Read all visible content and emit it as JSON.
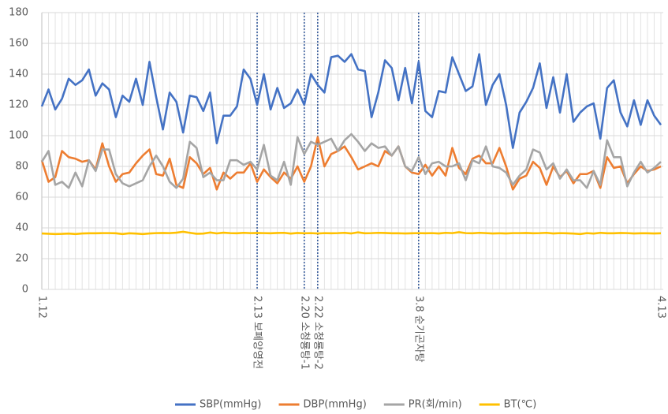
{
  "chart_data": {
    "type": "line",
    "categories": [
      "1.12",
      null,
      null,
      null,
      null,
      null,
      null,
      null,
      null,
      null,
      null,
      null,
      null,
      null,
      null,
      null,
      null,
      null,
      null,
      null,
      null,
      null,
      null,
      null,
      null,
      null,
      null,
      null,
      null,
      null,
      null,
      null,
      "2.13 보폐양영전",
      null,
      null,
      null,
      null,
      null,
      null,
      "2.20 소청룡탕-1",
      null,
      "2.22 소청룡탕-2",
      null,
      null,
      null,
      null,
      null,
      null,
      null,
      null,
      null,
      null,
      null,
      null,
      null,
      null,
      "3.8 순기곤자탕",
      null,
      null,
      null,
      null,
      null,
      null,
      null,
      null,
      null,
      null,
      null,
      null,
      null,
      null,
      null,
      null,
      null,
      null,
      null,
      null,
      null,
      null,
      null,
      null,
      null,
      null,
      null,
      null,
      null,
      null,
      null,
      null,
      null,
      null,
      null,
      "4.13"
    ],
    "series": [
      {
        "name": "SBP(mmHg)",
        "color": "#4472c4",
        "values": [
          119,
          130,
          117,
          124,
          137,
          133,
          136,
          143,
          126,
          134,
          130,
          112,
          126,
          122,
          137,
          120,
          148,
          125,
          104,
          128,
          122,
          102,
          126,
          125,
          116,
          128,
          95,
          113,
          113,
          119,
          143,
          137,
          120,
          140,
          117,
          131,
          118,
          121,
          130,
          120,
          140,
          133,
          128,
          151,
          152,
          148,
          153,
          143,
          142,
          112,
          128,
          149,
          144,
          123,
          144,
          121,
          148,
          116,
          112,
          129,
          128,
          151,
          140,
          129,
          132,
          153,
          120,
          133,
          140,
          120,
          92,
          115,
          122,
          131,
          147,
          118,
          138,
          115,
          140,
          109,
          115,
          119,
          121,
          98,
          131,
          136,
          115,
          106,
          123,
          107,
          123,
          113,
          107
        ]
      },
      {
        "name": "DBP(mmHg)",
        "color": "#ed7d31",
        "values": [
          84,
          70,
          73,
          90,
          86,
          85,
          83,
          84,
          78,
          95,
          80,
          70,
          75,
          76,
          82,
          87,
          91,
          75,
          74,
          85,
          68,
          66,
          86,
          82,
          75,
          79,
          65,
          76,
          72,
          76,
          76,
          82,
          70,
          78,
          73,
          69,
          76,
          72,
          80,
          70,
          80,
          99,
          80,
          88,
          90,
          93,
          86,
          78,
          80,
          82,
          80,
          90,
          87,
          93,
          80,
          76,
          75,
          81,
          74,
          80,
          74,
          92,
          79,
          75,
          85,
          87,
          82,
          82,
          92,
          80,
          65,
          72,
          74,
          83,
          79,
          68,
          80,
          73,
          77,
          69,
          75,
          75,
          77,
          66,
          86,
          79,
          80,
          69,
          75,
          80,
          77,
          78,
          80
        ]
      },
      {
        "name": "PR(회/min)",
        "color": "#a5a5a5",
        "values": [
          83,
          90,
          68,
          70,
          66,
          76,
          67,
          84,
          77,
          91,
          91,
          75,
          69,
          67,
          69,
          71,
          80,
          87,
          80,
          70,
          66,
          72,
          96,
          92,
          73,
          76,
          71,
          71,
          84,
          84,
          81,
          83,
          78,
          94,
          74,
          71,
          83,
          68,
          99,
          88,
          96,
          94,
          96,
          98,
          90,
          97,
          101,
          96,
          90,
          95,
          92,
          93,
          87,
          93,
          80,
          77,
          86,
          75,
          82,
          83,
          80,
          80,
          82,
          71,
          84,
          82,
          93,
          80,
          79,
          76,
          68,
          74,
          78,
          91,
          89,
          78,
          82,
          72,
          78,
          71,
          71,
          66,
          77,
          68,
          97,
          86,
          86,
          67,
          76,
          83,
          76,
          79,
          83
        ]
      },
      {
        "name": "BT(℃)",
        "color": "#ffc000",
        "values": [
          36.4,
          36.2,
          36.0,
          36.1,
          36.3,
          36.0,
          36.4,
          36.5,
          36.5,
          36.6,
          36.6,
          36.5,
          36.0,
          36.5,
          36.3,
          36.0,
          36.4,
          36.6,
          36.7,
          36.6,
          36.9,
          37.5,
          36.8,
          36.2,
          36.3,
          37.0,
          36.4,
          36.9,
          36.6,
          36.5,
          36.8,
          36.6,
          36.7,
          36.6,
          36.5,
          36.7,
          36.8,
          36.3,
          36.7,
          36.5,
          36.6,
          36.4,
          36.6,
          36.5,
          36.6,
          36.8,
          36.4,
          37.1,
          36.5,
          36.6,
          36.8,
          36.7,
          36.5,
          36.5,
          36.4,
          36.5,
          36.6,
          36.5,
          36.6,
          36.4,
          36.8,
          36.6,
          37.2,
          36.6,
          36.5,
          36.8,
          36.6,
          36.4,
          36.5,
          36.4,
          36.6,
          36.6,
          36.7,
          36.5,
          36.6,
          36.8,
          36.4,
          36.6,
          36.5,
          36.3,
          36.0,
          36.6,
          36.3,
          36.8,
          36.5,
          36.5,
          36.7,
          36.6,
          36.4,
          36.5,
          36.5,
          36.4,
          36.5
        ]
      }
    ],
    "reference_lines": [
      32,
      39,
      41,
      56
    ],
    "ylim": [
      0,
      180
    ],
    "yticks": [
      0,
      20,
      40,
      60,
      80,
      100,
      120,
      140,
      160,
      180
    ],
    "grid": true,
    "legend": "bottom"
  }
}
